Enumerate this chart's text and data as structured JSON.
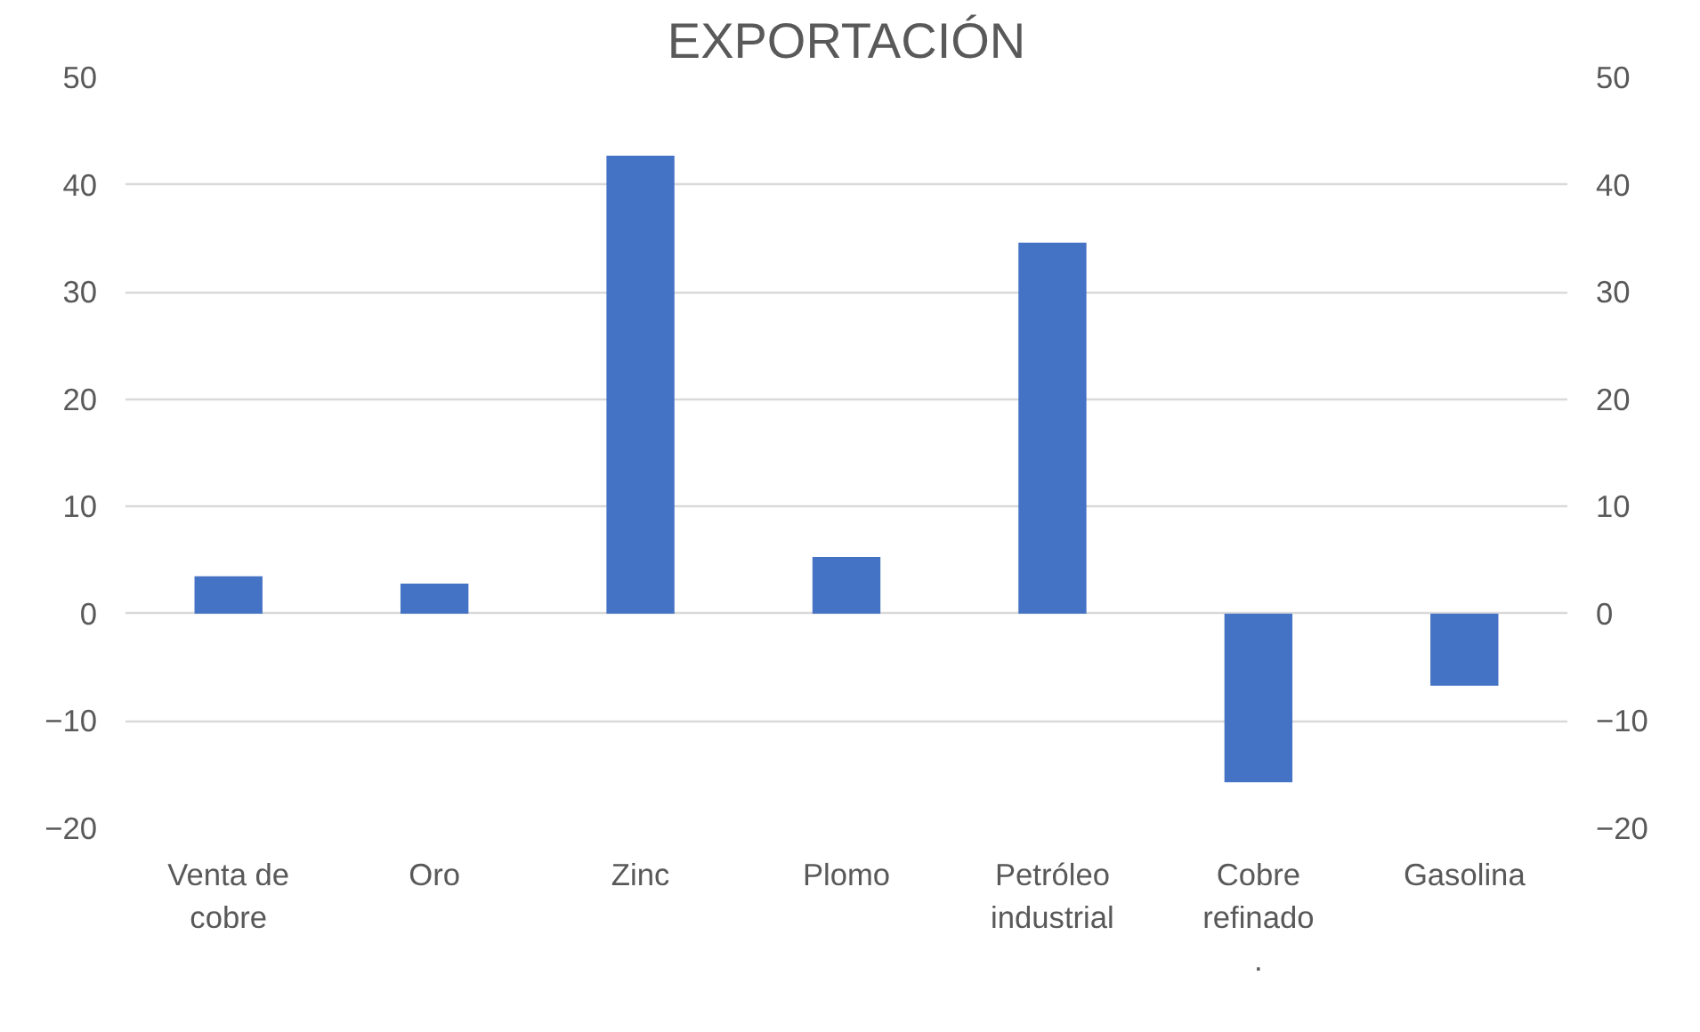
{
  "chart_data": {
    "type": "bar",
    "title": "EXPORTACIÓN",
    "categories": [
      "Venta de cobre",
      "Oro",
      "Zinc",
      "Plomo",
      "Petróleo industrial",
      "Cobre refinado .",
      "Gasolina"
    ],
    "values": [
      3.5,
      2.8,
      42.7,
      5.3,
      34.6,
      -15.7,
      -6.7
    ],
    "color": "#4472c4",
    "ylim": [
      -20,
      50
    ],
    "yticks": [
      -20,
      -10,
      0,
      10,
      20,
      30,
      40,
      50
    ],
    "y2lim": [
      -20,
      50
    ],
    "y2ticks": [
      -20,
      -10,
      0,
      10,
      20,
      30,
      40,
      50
    ],
    "grid": "y"
  }
}
